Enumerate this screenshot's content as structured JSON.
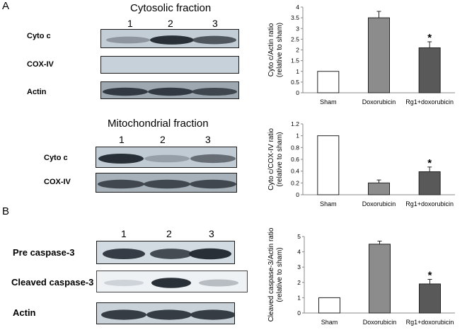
{
  "panels": {
    "a": "A",
    "b": "B"
  },
  "cyto_blot": {
    "title": "Cytosolic fraction",
    "lanes": [
      "1",
      "2",
      "3"
    ],
    "rows": [
      "Cyto c",
      "COX-IV",
      "Actin"
    ],
    "bands": {
      "cyto_c": [
        0.5,
        0.95,
        0.8
      ],
      "cox_iv": [
        0,
        0,
        0
      ],
      "actin": [
        0.9,
        0.9,
        0.85
      ]
    }
  },
  "mito_blot": {
    "title": "Mitochondrial fraction",
    "lanes": [
      "1",
      "2",
      "3"
    ],
    "rows": [
      "Cyto c",
      "COX-IV"
    ],
    "bands": {
      "cyto_c": [
        0.95,
        0.45,
        0.7
      ],
      "cox_iv": [
        0.85,
        0.85,
        0.85
      ]
    }
  },
  "casp_blot": {
    "lanes": [
      "1",
      "2",
      "3"
    ],
    "rows": [
      "Pre caspase-3",
      "Cleaved caspase-3",
      "Actin"
    ],
    "bands": {
      "pre": [
        0.9,
        0.85,
        0.95
      ],
      "cleaved": [
        0.2,
        0.95,
        0.35
      ],
      "actin": [
        0.9,
        0.9,
        0.9
      ]
    }
  },
  "chart_data": [
    {
      "type": "bar",
      "categories": [
        "Sham",
        "Doxorubicin",
        "Rg1+doxorubicin"
      ],
      "values": [
        1,
        3.5,
        2.1
      ],
      "errors": [
        0,
        0.3,
        0.28
      ],
      "significance": [
        "",
        "",
        "*"
      ],
      "ylabel": "Cyto c/Actin ratio\n(relative to sham)",
      "ylim": [
        0,
        4
      ],
      "yticks": [
        "0",
        "0.5",
        "1",
        "1.5",
        "2",
        "2.5",
        "3",
        "3.5",
        "4"
      ],
      "colors": [
        "#ffffff",
        "#8c8c8c",
        "#595959"
      ]
    },
    {
      "type": "bar",
      "categories": [
        "Sham",
        "Doxorubicin",
        "Rg1+doxorubicin"
      ],
      "values": [
        1,
        0.2,
        0.39
      ],
      "errors": [
        0,
        0.05,
        0.08
      ],
      "significance": [
        "",
        "",
        "*"
      ],
      "ylabel": "Cyto c/COX-IV ratio\n(relative to sham)",
      "ylim": [
        0,
        1.2
      ],
      "yticks": [
        "0",
        "0.2",
        "0.4",
        "0.6",
        "0.8",
        "1",
        "1.2"
      ],
      "colors": [
        "#ffffff",
        "#8c8c8c",
        "#595959"
      ]
    },
    {
      "type": "bar",
      "categories": [
        "Sham",
        "Doxorubicin",
        "Rg1+doxorubicin"
      ],
      "values": [
        1,
        4.5,
        1.9
      ],
      "errors": [
        0,
        0.2,
        0.3
      ],
      "significance": [
        "",
        "",
        "*"
      ],
      "ylabel": "Cleaved caspase-3/Actin ratio\n(relative to sham)",
      "ylim": [
        0,
        5
      ],
      "yticks": [
        "0",
        "1",
        "2",
        "3",
        "4",
        "5"
      ],
      "colors": [
        "#ffffff",
        "#8c8c8c",
        "#595959"
      ]
    }
  ]
}
